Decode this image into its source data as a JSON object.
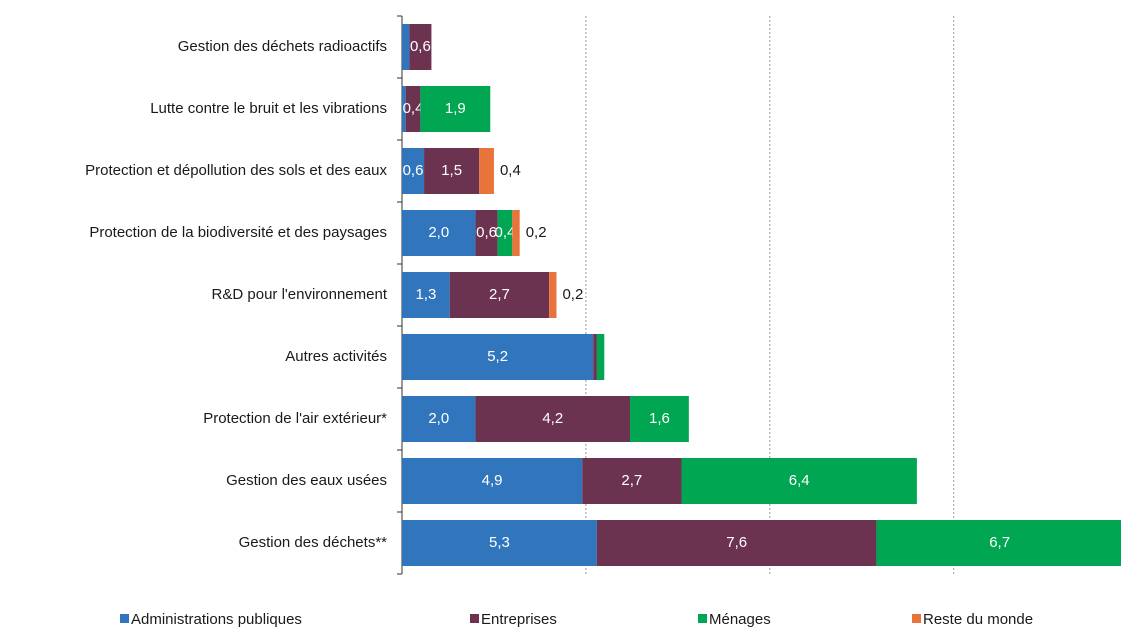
{
  "chart_data": {
    "type": "bar",
    "orientation": "horizontal",
    "stacked": true,
    "categories": [
      "Gestion des déchets radioactifs",
      "Lutte contre le bruit et les vibrations",
      "Protection et dépollution des sols et des eaux",
      "Protection de la biodiversité et des paysages",
      "R&D pour l'environnement",
      "Autres activités",
      "Protection de l'air extérieur*",
      "Gestion des eaux usées",
      "Gestion des déchets**"
    ],
    "series": [
      {
        "name": "Administrations publiques",
        "color": "#3176bd",
        "values": [
          0.2,
          0.1,
          0.6,
          2.0,
          1.3,
          5.2,
          2.0,
          4.9,
          5.3
        ],
        "value_labels": [
          null,
          null,
          "0,6",
          "2,0",
          "1,3",
          "5,2",
          "2,0",
          "4,9",
          "5,3"
        ]
      },
      {
        "name": "Entreprises",
        "color": "#6b3350",
        "values": [
          0.6,
          0.4,
          1.5,
          0.6,
          2.7,
          0.1,
          4.2,
          2.7,
          7.6
        ],
        "value_labels": [
          "0,6",
          "0,4",
          "1,5",
          "0,6",
          "2,7",
          null,
          "4,2",
          "2,7",
          "7,6"
        ]
      },
      {
        "name": "Ménages",
        "color": "#00a651",
        "values": [
          0,
          1.9,
          0,
          0.4,
          0,
          0.2,
          1.6,
          6.4,
          6.7
        ],
        "value_labels": [
          null,
          "1,9",
          null,
          "0,4",
          null,
          null,
          "1,6",
          "6,4",
          "6,7"
        ]
      },
      {
        "name": "Reste du monde",
        "color": "#e8743b",
        "values": [
          0,
          0,
          0.4,
          0.2,
          0.2,
          0,
          0,
          0,
          0
        ],
        "value_labels": [
          null,
          null,
          "0,4",
          "0,2",
          "0,2",
          null,
          null,
          null,
          null
        ]
      }
    ],
    "xlim": [
      0,
      19.55
    ],
    "xticks": [
      5,
      10,
      15
    ],
    "xtick_labels": false,
    "grid": true,
    "legend": "bottom"
  }
}
